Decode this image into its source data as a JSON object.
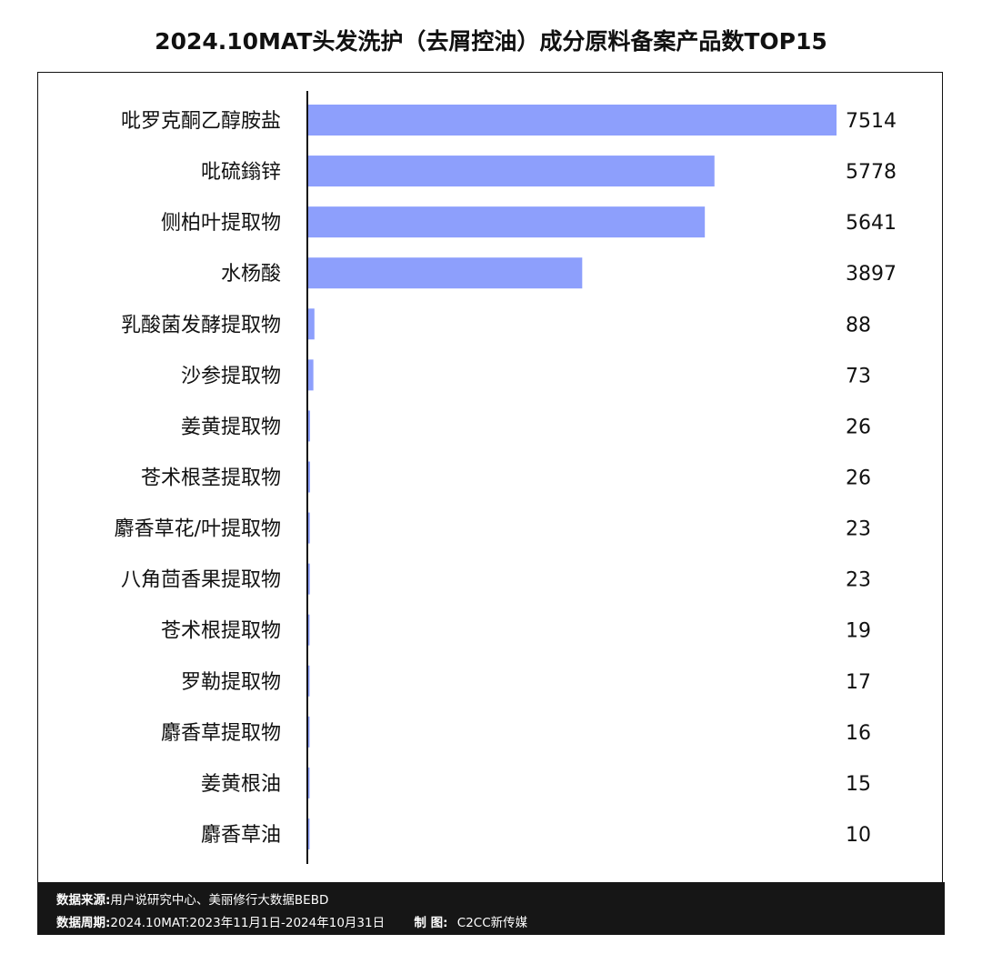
{
  "chart_data": {
    "type": "bar",
    "orientation": "horizontal",
    "title": "2024.10MAT头发洗护（去屑控油）成分原料备案产品数TOP15",
    "categories": [
      "吡罗克酮乙醇胺盐",
      "吡硫鎓锌",
      "侧柏叶提取物",
      "水杨酸",
      "乳酸菌发酵提取物",
      "沙参提取物",
      "姜黄提取物",
      "苍术根茎提取物",
      "麝香草花/叶提取物",
      "八角茴香果提取物",
      "苍术根提取物",
      "罗勒提取物",
      "麝香草提取物",
      "姜黄根油",
      "麝香草油"
    ],
    "values": [
      7514,
      5778,
      5641,
      3897,
      88,
      73,
      26,
      26,
      23,
      23,
      19,
      17,
      16,
      15,
      10
    ],
    "xlim": [
      0,
      7514
    ],
    "grid": false,
    "data_labels": true,
    "bar_color": "#8d9ffc"
  },
  "footer": {
    "source_label": "数据来源:",
    "source": "用户说研究中心、美丽修行大数据BEBD",
    "period_label": "数据周期:",
    "period": "2024.10MAT:2023年11月1日-2024年10月31日",
    "maker_label": "制 图:",
    "maker": "C2CC新传媒"
  }
}
